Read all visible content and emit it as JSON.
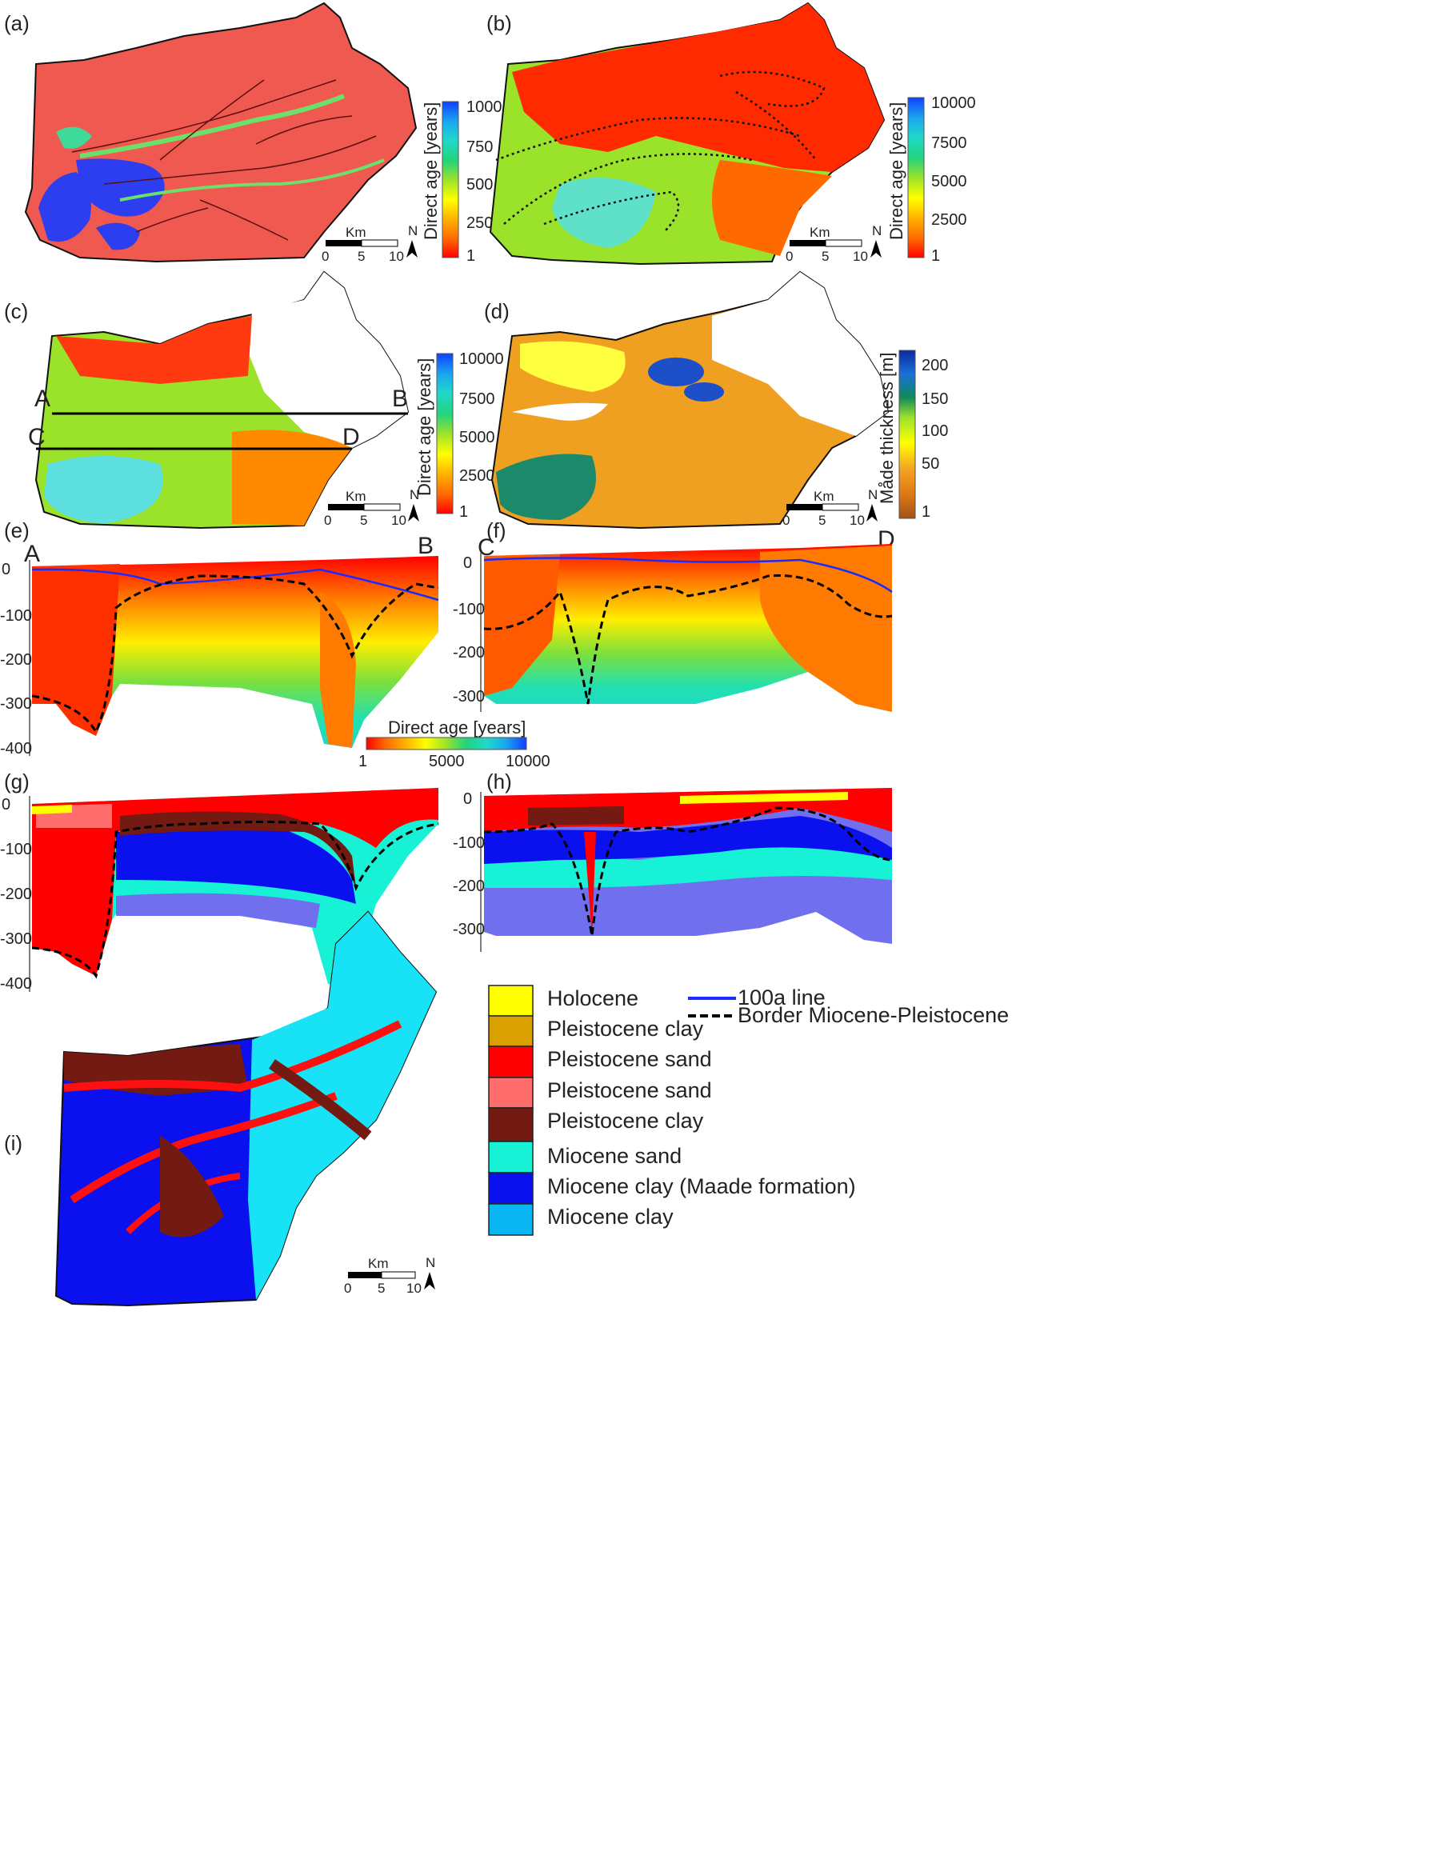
{
  "panels": {
    "a": {
      "label": "(a)"
    },
    "b": {
      "label": "(b)"
    },
    "c": {
      "label": "(c)"
    },
    "d": {
      "label": "(d)"
    },
    "e": {
      "label": "(e)"
    },
    "f": {
      "label": "(f)"
    },
    "g": {
      "label": "(g)"
    },
    "h": {
      "label": "(h)"
    },
    "i": {
      "label": "(i)"
    }
  },
  "colorbars": {
    "a": {
      "title": "Direct age [years]",
      "ticks": [
        "1000",
        "750",
        "500",
        "250",
        "1"
      ]
    },
    "b": {
      "title": "Direct age [years]",
      "ticks": [
        "10000",
        "7500",
        "5000",
        "2500",
        "1"
      ]
    },
    "c": {
      "title": "Direct age [years]",
      "ticks": [
        "10000",
        "7500",
        "5000",
        "2500",
        "1"
      ]
    },
    "d": {
      "title": "Måde thickness [m]",
      "ticks": [
        "200",
        "150",
        "100",
        "50",
        "1"
      ]
    },
    "sections": {
      "title": "Direct age [years]",
      "ticks": [
        "1",
        "5000",
        "10000"
      ]
    }
  },
  "colors": {
    "age_ramp": [
      "#ff0000",
      "#ff6a00",
      "#ffb400",
      "#ffff00",
      "#9be22b",
      "#22d47a",
      "#1fd9c8",
      "#1aa8f0",
      "#1040ff"
    ],
    "thickness_ramp": [
      "#a0521c",
      "#e07a14",
      "#f5a623",
      "#ffff00",
      "#9be22b",
      "#0e8a5a",
      "#1c6fd8",
      "#0a2aa0"
    ],
    "line_100a": "#1a2bff",
    "line_border": "#000000"
  },
  "scalebar": {
    "unit": "Km",
    "ticks": [
      "0",
      "5",
      "10"
    ],
    "north": "N"
  },
  "sections": {
    "e": {
      "start": "A",
      "end": "B",
      "depth_ticks": [
        "0",
        "-100",
        "-200",
        "-300",
        "-400"
      ]
    },
    "f": {
      "start": "C",
      "end": "D",
      "depth_ticks": [
        "0",
        "-100",
        "-200",
        "-300"
      ]
    },
    "g": {
      "depth_ticks": [
        "0",
        "-100",
        "-200",
        "-300",
        "-400"
      ]
    },
    "h": {
      "depth_ticks": [
        "0",
        "-100",
        "-200",
        "-300"
      ]
    }
  },
  "profile_labels": {
    "A": "A",
    "B": "B",
    "C": "C",
    "D": "D"
  },
  "legend": {
    "units": [
      {
        "label": "Holocene",
        "color": "#ffff00"
      },
      {
        "label": "Pleistocene clay",
        "color": "#d9a000"
      },
      {
        "label": "Pleistocene sand",
        "color": "#ff0000"
      },
      {
        "label": "Pleistocene sand",
        "color": "#ff6d6d"
      },
      {
        "label": "Pleistocene clay",
        "color": "#731a12"
      },
      {
        "label": "Miocene sand",
        "color": "#17f2d6"
      },
      {
        "label": "Miocene clay (Maade formation)",
        "color": "#0a10ee"
      },
      {
        "label": "Miocene clay",
        "color": "#0ab6f2"
      }
    ],
    "lines": [
      {
        "label": "100a line",
        "style": "solid",
        "color": "#1a2bff"
      },
      {
        "label": "Border Miocene-Pleistocene",
        "style": "dashed",
        "color": "#000000"
      }
    ]
  }
}
